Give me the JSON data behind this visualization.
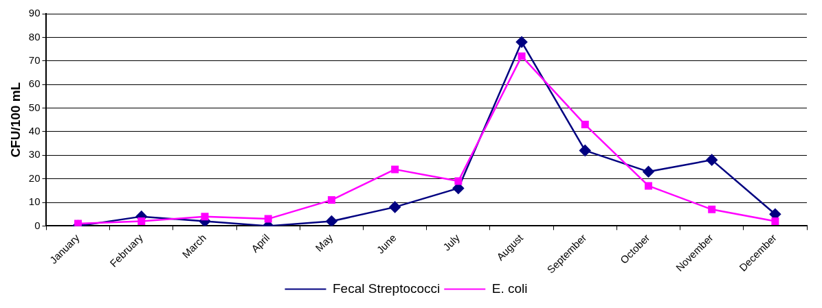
{
  "chart_data": {
    "type": "line",
    "ylabel": "CFU/100 mL",
    "categories": [
      "January",
      "February",
      "March",
      "April",
      "May",
      "June",
      "July",
      "August",
      "September",
      "October",
      "November",
      "December"
    ],
    "series": [
      {
        "name": "Fecal Streptococci",
        "color": "#000080",
        "marker": "diamond",
        "values": [
          0,
          4,
          2,
          0,
          2,
          8,
          16,
          78,
          32,
          23,
          28,
          5
        ]
      },
      {
        "name": "E. coli",
        "color": "#ff00ff",
        "marker": "square",
        "values": [
          1,
          2,
          4,
          3,
          11,
          24,
          19,
          72,
          43,
          17,
          7,
          2
        ]
      }
    ],
    "ylim": [
      0,
      90
    ],
    "yticks": [
      0,
      10,
      20,
      30,
      40,
      50,
      60,
      70,
      80,
      90
    ],
    "grid": "y",
    "legend": "bottom",
    "line_style": "solid"
  }
}
